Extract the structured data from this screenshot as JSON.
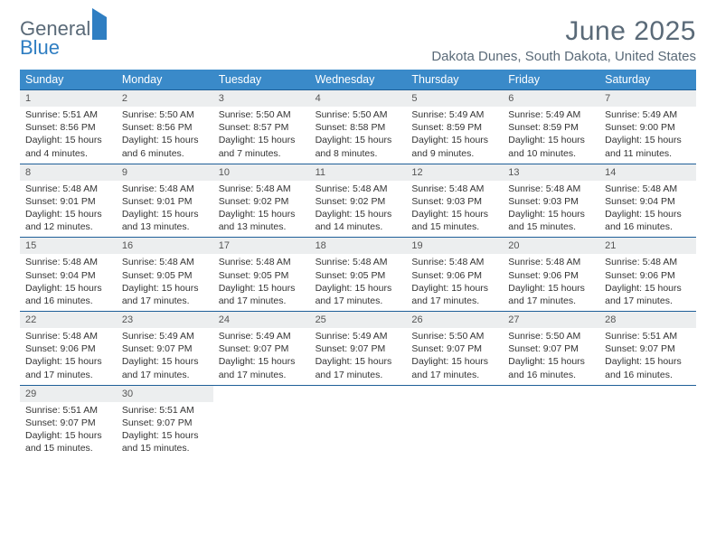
{
  "logo": {
    "part1": "General",
    "part2": "Blue"
  },
  "title": "June 2025",
  "location": "Dakota Dunes, South Dakota, United States",
  "style": {
    "header_bg": "#3a8ac9",
    "header_text": "#ffffff",
    "week_border": "#1f5f98",
    "daynum_bg": "#eceeef",
    "body_text": "#333333",
    "muted_text": "#5a6a78",
    "logo_blue": "#2f7ec2",
    "page_bg": "#ffffff",
    "title_fontsize": 30,
    "location_fontsize": 15,
    "dow_fontsize": 12.5,
    "daynum_fontsize": 11,
    "detail_fontsize": 10.5
  },
  "dow": [
    "Sunday",
    "Monday",
    "Tuesday",
    "Wednesday",
    "Thursday",
    "Friday",
    "Saturday"
  ],
  "weeks": [
    [
      {
        "n": "1",
        "sr": "5:51 AM",
        "ss": "8:56 PM",
        "dl": "15 hours and 4 minutes."
      },
      {
        "n": "2",
        "sr": "5:50 AM",
        "ss": "8:56 PM",
        "dl": "15 hours and 6 minutes."
      },
      {
        "n": "3",
        "sr": "5:50 AM",
        "ss": "8:57 PM",
        "dl": "15 hours and 7 minutes."
      },
      {
        "n": "4",
        "sr": "5:50 AM",
        "ss": "8:58 PM",
        "dl": "15 hours and 8 minutes."
      },
      {
        "n": "5",
        "sr": "5:49 AM",
        "ss": "8:59 PM",
        "dl": "15 hours and 9 minutes."
      },
      {
        "n": "6",
        "sr": "5:49 AM",
        "ss": "8:59 PM",
        "dl": "15 hours and 10 minutes."
      },
      {
        "n": "7",
        "sr": "5:49 AM",
        "ss": "9:00 PM",
        "dl": "15 hours and 11 minutes."
      }
    ],
    [
      {
        "n": "8",
        "sr": "5:48 AM",
        "ss": "9:01 PM",
        "dl": "15 hours and 12 minutes."
      },
      {
        "n": "9",
        "sr": "5:48 AM",
        "ss": "9:01 PM",
        "dl": "15 hours and 13 minutes."
      },
      {
        "n": "10",
        "sr": "5:48 AM",
        "ss": "9:02 PM",
        "dl": "15 hours and 13 minutes."
      },
      {
        "n": "11",
        "sr": "5:48 AM",
        "ss": "9:02 PM",
        "dl": "15 hours and 14 minutes."
      },
      {
        "n": "12",
        "sr": "5:48 AM",
        "ss": "9:03 PM",
        "dl": "15 hours and 15 minutes."
      },
      {
        "n": "13",
        "sr": "5:48 AM",
        "ss": "9:03 PM",
        "dl": "15 hours and 15 minutes."
      },
      {
        "n": "14",
        "sr": "5:48 AM",
        "ss": "9:04 PM",
        "dl": "15 hours and 16 minutes."
      }
    ],
    [
      {
        "n": "15",
        "sr": "5:48 AM",
        "ss": "9:04 PM",
        "dl": "15 hours and 16 minutes."
      },
      {
        "n": "16",
        "sr": "5:48 AM",
        "ss": "9:05 PM",
        "dl": "15 hours and 17 minutes."
      },
      {
        "n": "17",
        "sr": "5:48 AM",
        "ss": "9:05 PM",
        "dl": "15 hours and 17 minutes."
      },
      {
        "n": "18",
        "sr": "5:48 AM",
        "ss": "9:05 PM",
        "dl": "15 hours and 17 minutes."
      },
      {
        "n": "19",
        "sr": "5:48 AM",
        "ss": "9:06 PM",
        "dl": "15 hours and 17 minutes."
      },
      {
        "n": "20",
        "sr": "5:48 AM",
        "ss": "9:06 PM",
        "dl": "15 hours and 17 minutes."
      },
      {
        "n": "21",
        "sr": "5:48 AM",
        "ss": "9:06 PM",
        "dl": "15 hours and 17 minutes."
      }
    ],
    [
      {
        "n": "22",
        "sr": "5:48 AM",
        "ss": "9:06 PM",
        "dl": "15 hours and 17 minutes."
      },
      {
        "n": "23",
        "sr": "5:49 AM",
        "ss": "9:07 PM",
        "dl": "15 hours and 17 minutes."
      },
      {
        "n": "24",
        "sr": "5:49 AM",
        "ss": "9:07 PM",
        "dl": "15 hours and 17 minutes."
      },
      {
        "n": "25",
        "sr": "5:49 AM",
        "ss": "9:07 PM",
        "dl": "15 hours and 17 minutes."
      },
      {
        "n": "26",
        "sr": "5:50 AM",
        "ss": "9:07 PM",
        "dl": "15 hours and 17 minutes."
      },
      {
        "n": "27",
        "sr": "5:50 AM",
        "ss": "9:07 PM",
        "dl": "15 hours and 16 minutes."
      },
      {
        "n": "28",
        "sr": "5:51 AM",
        "ss": "9:07 PM",
        "dl": "15 hours and 16 minutes."
      }
    ],
    [
      {
        "n": "29",
        "sr": "5:51 AM",
        "ss": "9:07 PM",
        "dl": "15 hours and 15 minutes."
      },
      {
        "n": "30",
        "sr": "5:51 AM",
        "ss": "9:07 PM",
        "dl": "15 hours and 15 minutes."
      },
      null,
      null,
      null,
      null,
      null
    ]
  ],
  "labels": {
    "sunrise": "Sunrise:",
    "sunset": "Sunset:",
    "daylight": "Daylight:"
  }
}
